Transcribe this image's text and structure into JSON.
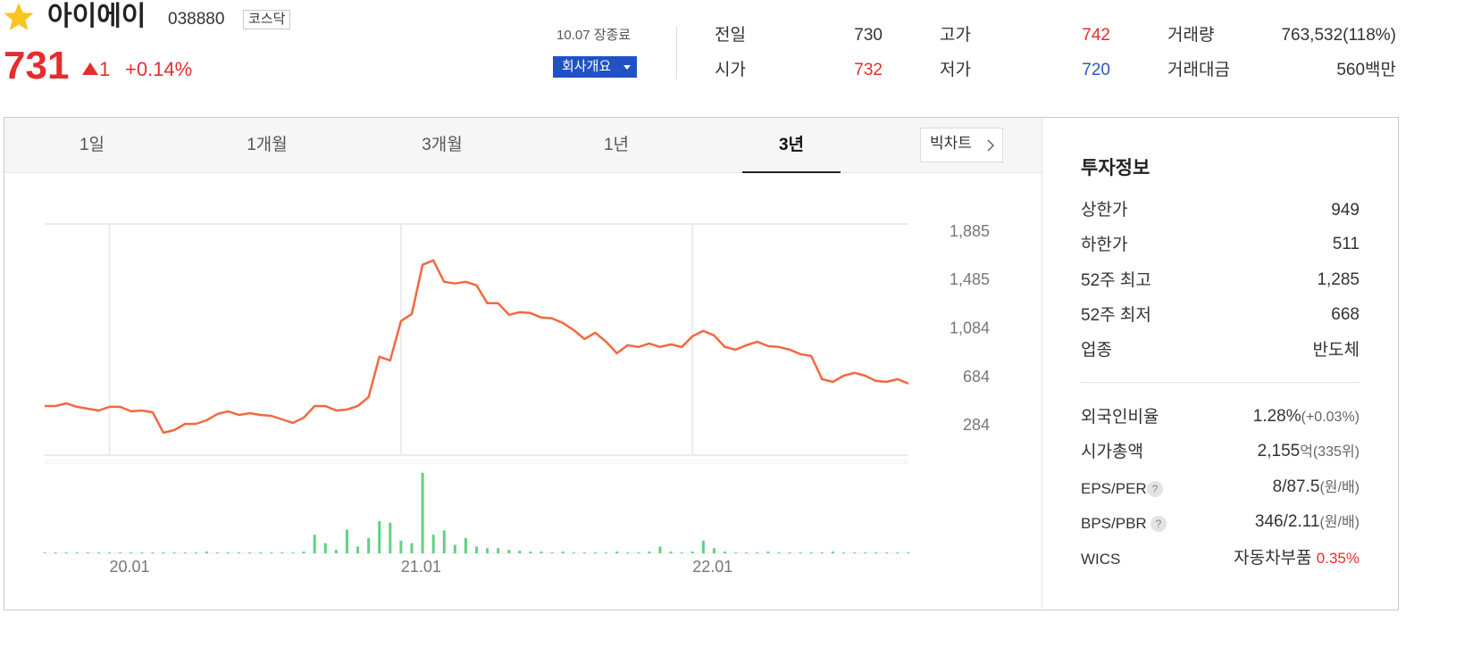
{
  "header": {
    "name": "아이에이",
    "code": "038880",
    "market": "코스닥",
    "price": "731",
    "change": "1",
    "change_pct": "+0.14%",
    "status": "10.07 장종료",
    "company_button": "회사개요"
  },
  "quote": [
    {
      "label": "전일",
      "value": "730"
    },
    {
      "label": "시가",
      "value": "732"
    },
    {
      "label": "고가",
      "value": "742"
    },
    {
      "label": "저가",
      "value": "720"
    },
    {
      "label": "거래량",
      "value": "763,532(118%)"
    },
    {
      "label": "거래대금",
      "value": "560",
      "unit": "백만"
    }
  ],
  "tabs": [
    "1일",
    "1개월",
    "3개월",
    "1년",
    "3년"
  ],
  "big_chart": "빅차트",
  "invest": {
    "title": "투자정보",
    "rows": [
      {
        "label": "상한가",
        "value": "949"
      },
      {
        "label": "하한가",
        "value": "511"
      },
      {
        "label": "52주 최고",
        "value": "1,285"
      },
      {
        "label": "52주 최저",
        "value": "668"
      },
      {
        "label": "업종",
        "value": "반도체"
      }
    ],
    "details": [
      {
        "label": "외국인비율",
        "value": "1.28%",
        "note": "(+0.03%)"
      },
      {
        "label": "시가총액",
        "value": "2,155",
        "note": "억(335위)"
      },
      {
        "label": "EPS/PER",
        "value": "8/87.5",
        "note": "(원/배)"
      },
      {
        "label": "BPS/PBR",
        "value": "346/2.11",
        "note": "(원/배)"
      },
      {
        "label": "WICS",
        "value": "자동차부품",
        "note": "0.35%"
      }
    ]
  },
  "chart_data": [
    {
      "type": "line",
      "color": "#f4683f",
      "categories": [
        null,
        null,
        null,
        null,
        null,
        null,
        "20.01",
        null,
        null,
        null,
        null,
        null,
        null,
        null,
        null,
        null,
        null,
        null,
        null,
        null,
        null,
        null,
        null,
        null,
        null,
        null,
        null,
        null,
        null,
        null,
        null,
        null,
        null,
        "21.01",
        null,
        null,
        null,
        null,
        null,
        null,
        null,
        null,
        null,
        null,
        null,
        null,
        null,
        null,
        null,
        null,
        null,
        null,
        null,
        null,
        null,
        null,
        null,
        null,
        null,
        null,
        "22.01",
        null,
        null,
        null,
        null,
        null,
        null,
        null,
        null,
        null,
        null,
        null,
        null,
        null,
        null,
        null,
        null,
        null,
        null,
        null,
        null
      ],
      "values": [
        439,
        439,
        461,
        432,
        417,
        402,
        432,
        432,
        395,
        402,
        387,
        218,
        240,
        291,
        291,
        321,
        373,
        395,
        365,
        380,
        365,
        358,
        328,
        299,
        343,
        439,
        439,
        402,
        410,
        439,
        513,
        846,
        816,
        1141,
        1200,
        1607,
        1644,
        1466,
        1452,
        1466,
        1437,
        1289,
        1289,
        1193,
        1215,
        1208,
        1171,
        1163,
        1126,
        1067,
        993,
        1045,
        971,
        875,
        942,
        927,
        956,
        927,
        949,
        927,
        1016,
        1060,
        1023,
        927,
        905,
        942,
        971,
        934,
        927,
        905,
        868,
        853,
        661,
        639,
        690,
        713,
        690,
        646,
        639,
        661,
        624
      ],
      "ylim": [
        33,
        1944
      ],
      "yticks": [
        284,
        684,
        {
          "value": 1084,
          "label": "1,084"
        },
        {
          "value": 1485,
          "label": "1,485"
        },
        {
          "value": 1885,
          "label": "1,885"
        }
      ]
    },
    {
      "type": "bar",
      "color": "#5fd282",
      "values": [
        1,
        1,
        1,
        1,
        1,
        1,
        1,
        1,
        1,
        1,
        1,
        1,
        1,
        1,
        1,
        2,
        1,
        1,
        1,
        1,
        1,
        1,
        1,
        1,
        2,
        22,
        12,
        4,
        28,
        8,
        18,
        38,
        36,
        15,
        12,
        95,
        22,
        27,
        10,
        18,
        8,
        6,
        6,
        4,
        3,
        2,
        2,
        1,
        2,
        1,
        1,
        1,
        1,
        2,
        1,
        1,
        2,
        8,
        2,
        1,
        2,
        15,
        6,
        2,
        1,
        1,
        1,
        2,
        1,
        1,
        1,
        1,
        1,
        2,
        1,
        1,
        1,
        1,
        1,
        1,
        1
      ],
      "ylim": [
        0,
        100
      ]
    }
  ]
}
